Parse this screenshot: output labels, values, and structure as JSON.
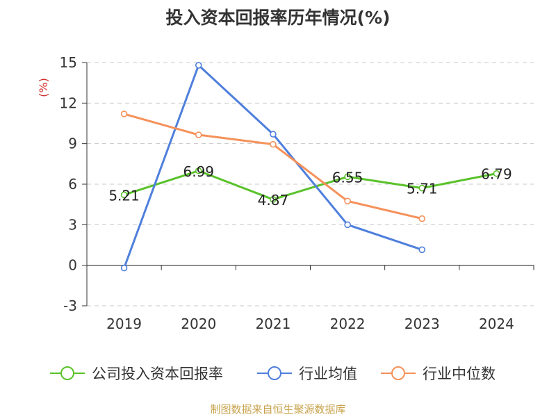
{
  "chart_data": {
    "type": "line",
    "title": "投入资本回报率历年情况(%)",
    "ylabel": "(%)",
    "xlabel": "",
    "categories": [
      "2019",
      "2020",
      "2021",
      "2022",
      "2023",
      "2024"
    ],
    "ylim": [
      -3,
      15
    ],
    "yticks": [
      -3,
      0,
      3,
      6,
      9,
      12,
      15
    ],
    "grid": true,
    "legend_position": "bottom",
    "series": [
      {
        "name": "公司投入资本回报率",
        "color": "#5ac22b",
        "values": [
          5.21,
          6.99,
          4.87,
          6.55,
          5.71,
          6.79
        ],
        "labels": [
          "5.21",
          "6.99",
          "4.87",
          "6.55",
          "5.71",
          "6.79"
        ]
      },
      {
        "name": "行业均值",
        "color": "#4f7fdc",
        "values": [
          -0.2,
          14.8,
          9.7,
          3.0,
          1.15,
          null
        ]
      },
      {
        "name": "行业中位数",
        "color": "#f5915a",
        "values": [
          11.2,
          9.65,
          8.95,
          4.75,
          3.45,
          null
        ]
      }
    ]
  },
  "source": "制图数据来自恒生聚源数据库"
}
